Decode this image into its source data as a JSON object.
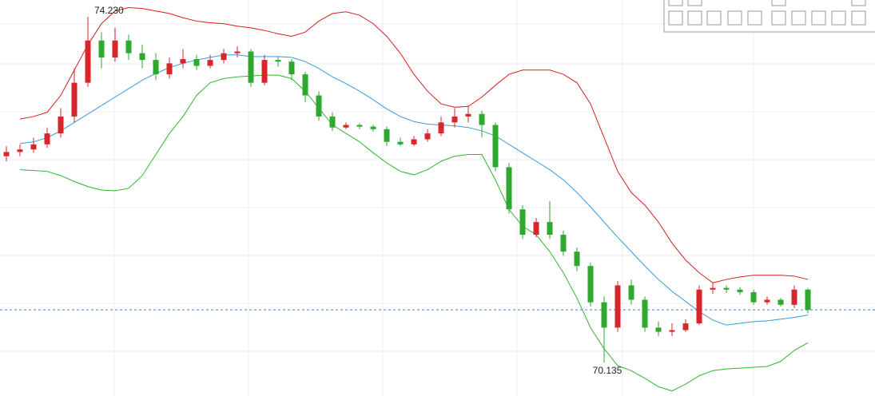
{
  "chart_data": {
    "type": "candlestick",
    "high_label": "74.230",
    "low_label": "70.135",
    "up_color": "#d9262c",
    "down_color": "#2ea82e",
    "ylim": [
      69.74,
      74.43
    ],
    "open": [
      72.58,
      72.63,
      72.66,
      72.72,
      72.85,
      73.05,
      73.45,
      73.95,
      73.75,
      73.95,
      73.8,
      73.72,
      73.55,
      73.68,
      73.73,
      73.65,
      73.72,
      73.8,
      73.82,
      73.45,
      73.72,
      73.7,
      73.55,
      73.3,
      73.05,
      72.92,
      72.95,
      72.93,
      72.9,
      72.75,
      72.72,
      72.78,
      72.85,
      72.98,
      73.05,
      73.08,
      72.95,
      72.45,
      71.95,
      71.65,
      71.8,
      71.65,
      71.45,
      71.28,
      70.85,
      70.55,
      71.05,
      70.88,
      70.55,
      70.5,
      70.52,
      70.6,
      71.0,
      71.02,
      71.0,
      70.97,
      70.85,
      70.88,
      70.82,
      71.0
    ],
    "high": [
      72.7,
      72.72,
      72.8,
      72.92,
      73.15,
      73.62,
      74.23,
      74.05,
      74.1,
      74.02,
      73.9,
      73.8,
      73.75,
      73.85,
      73.78,
      73.78,
      73.85,
      73.88,
      73.85,
      73.78,
      73.76,
      73.73,
      73.58,
      73.35,
      73.1,
      72.98,
      72.97,
      72.95,
      72.93,
      72.8,
      72.82,
      72.9,
      73.05,
      73.15,
      73.18,
      73.12,
      72.98,
      72.5,
      72.0,
      71.85,
      72.05,
      71.7,
      71.5,
      71.32,
      70.92,
      71.1,
      71.12,
      70.92,
      70.62,
      70.6,
      70.65,
      71.05,
      71.08,
      71.05,
      71.03,
      71.0,
      70.92,
      70.9,
      71.05,
      71.02
    ],
    "low": [
      72.52,
      72.58,
      72.62,
      72.68,
      72.8,
      72.98,
      73.4,
      73.62,
      73.7,
      73.72,
      73.62,
      73.48,
      73.5,
      73.62,
      73.6,
      73.62,
      73.68,
      73.75,
      73.4,
      73.42,
      73.64,
      73.48,
      73.22,
      73.0,
      72.88,
      72.9,
      72.9,
      72.87,
      72.7,
      72.7,
      72.7,
      72.75,
      72.82,
      72.92,
      72.98,
      72.8,
      72.4,
      71.9,
      71.6,
      71.62,
      71.6,
      71.4,
      71.22,
      70.8,
      70.135,
      70.5,
      70.82,
      70.5,
      70.45,
      70.45,
      70.5,
      70.58,
      70.95,
      70.96,
      70.94,
      70.82,
      70.82,
      70.8,
      70.78,
      70.72
    ],
    "close": [
      72.63,
      72.66,
      72.72,
      72.85,
      73.05,
      73.45,
      73.95,
      73.75,
      73.95,
      73.8,
      73.72,
      73.55,
      73.68,
      73.73,
      73.65,
      73.72,
      73.8,
      73.82,
      73.45,
      73.72,
      73.7,
      73.55,
      73.3,
      73.05,
      72.92,
      72.95,
      72.93,
      72.9,
      72.75,
      72.72,
      72.78,
      72.85,
      72.98,
      73.05,
      73.08,
      72.95,
      72.45,
      71.95,
      71.65,
      71.8,
      71.65,
      71.45,
      71.28,
      70.85,
      70.55,
      71.05,
      70.88,
      70.55,
      70.5,
      70.52,
      70.6,
      71.0,
      71.02,
      71.0,
      70.97,
      70.85,
      70.88,
      70.82,
      71.0,
      70.76
    ],
    "bands": [
      {
        "color": "#d81e1e",
        "values": [
          null,
          73.02,
          73.05,
          73.1,
          73.3,
          73.6,
          73.9,
          74.15,
          74.3,
          74.34,
          74.33,
          74.3,
          74.27,
          74.22,
          74.18,
          74.16,
          74.15,
          74.12,
          74.1,
          74.07,
          74.03,
          74.0,
          74.05,
          74.18,
          74.27,
          74.29,
          74.25,
          74.15,
          74.0,
          73.8,
          73.55,
          73.35,
          73.2,
          73.16,
          73.17,
          73.28,
          73.42,
          73.55,
          73.6,
          73.6,
          73.6,
          73.55,
          73.45,
          73.2,
          72.8,
          72.4,
          72.15,
          72.0,
          71.8,
          71.55,
          71.35,
          71.2,
          71.08,
          71.12,
          71.15,
          71.17,
          71.17,
          71.17,
          71.16,
          71.12
        ]
      },
      {
        "color": "#3a9ad9",
        "values": [
          null,
          72.73,
          72.75,
          72.8,
          72.88,
          72.98,
          73.08,
          73.18,
          73.28,
          73.38,
          73.48,
          73.56,
          73.63,
          73.68,
          73.72,
          73.75,
          73.78,
          73.78,
          73.76,
          73.76,
          73.76,
          73.75,
          73.7,
          73.62,
          73.52,
          73.44,
          73.35,
          73.25,
          73.14,
          73.05,
          72.99,
          72.96,
          72.95,
          72.94,
          72.92,
          72.88,
          72.82,
          72.72,
          72.62,
          72.52,
          72.42,
          72.3,
          72.15,
          71.98,
          71.8,
          71.62,
          71.45,
          71.28,
          71.12,
          70.98,
          70.86,
          70.74,
          70.64,
          70.58,
          70.6,
          70.62,
          70.63,
          70.65,
          70.67,
          70.7
        ]
      },
      {
        "color": "#2fb52f",
        "values": [
          null,
          72.42,
          72.41,
          72.4,
          72.35,
          72.28,
          72.22,
          72.18,
          72.17,
          72.2,
          72.35,
          72.6,
          72.85,
          73.05,
          73.3,
          73.45,
          73.5,
          73.52,
          73.53,
          73.54,
          73.54,
          73.5,
          73.35,
          73.15,
          72.95,
          72.85,
          72.75,
          72.62,
          72.5,
          72.4,
          72.36,
          72.42,
          72.52,
          72.58,
          72.6,
          72.6,
          72.3,
          71.95,
          71.75,
          71.65,
          71.45,
          71.2,
          70.9,
          70.55,
          70.3,
          70.1,
          70.04,
          69.95,
          69.85,
          69.8,
          69.88,
          69.98,
          70.04,
          70.06,
          70.07,
          70.08,
          70.09,
          70.15,
          70.28,
          70.37
        ]
      }
    ]
  }
}
